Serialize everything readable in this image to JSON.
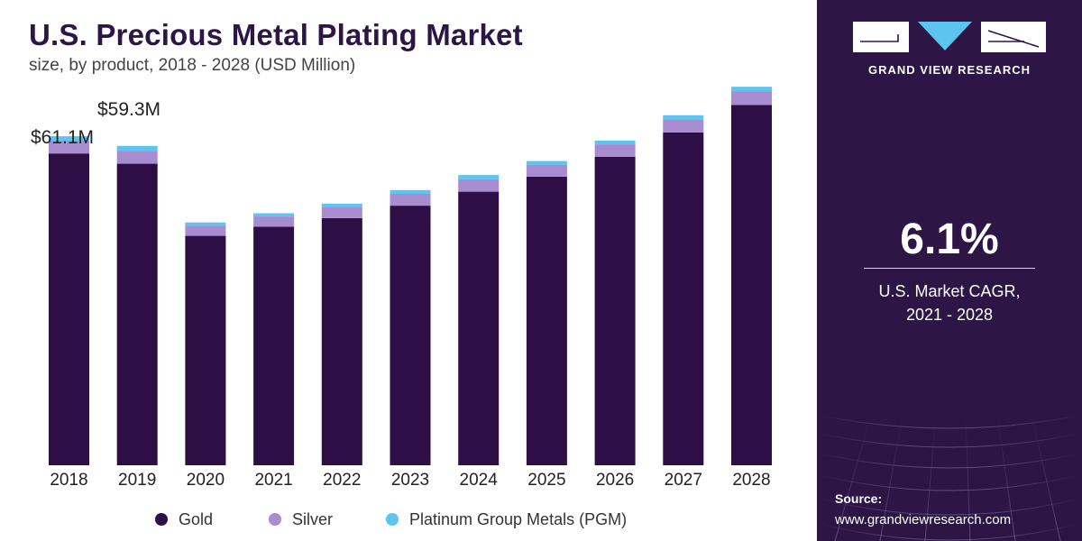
{
  "header": {
    "title": "U.S. Precious Metal Plating Market",
    "subtitle": "size, by product, 2018 - 2028 (USD Million)"
  },
  "callouts": {
    "value_2018": "$61.1M",
    "value_2019": "$59.3M"
  },
  "chart_data": {
    "type": "bar",
    "stacked": true,
    "categories": [
      "2018",
      "2019",
      "2020",
      "2021",
      "2022",
      "2023",
      "2024",
      "2025",
      "2026",
      "2027",
      "2028"
    ],
    "series": [
      {
        "name": "Gold",
        "color": "#2d0f45",
        "values": [
          57.9,
          56.0,
          42.6,
          44.3,
          45.9,
          48.2,
          50.8,
          53.6,
          57.3,
          61.8,
          66.9
        ]
      },
      {
        "name": "Silver",
        "color": "#a98bd0",
        "values": [
          2.3,
          2.4,
          1.9,
          1.9,
          2.0,
          2.2,
          2.3,
          2.2,
          2.3,
          2.4,
          2.5
        ]
      },
      {
        "name": "Platinum Group Metals (PGM)",
        "color": "#5bc4ef",
        "values": [
          0.9,
          0.9,
          0.6,
          0.6,
          0.7,
          0.7,
          0.8,
          0.7,
          0.7,
          0.8,
          0.9
        ]
      }
    ],
    "ylim": [
      0,
      72
    ],
    "grid": false,
    "legend_position": "bottom"
  },
  "sidebar": {
    "brand": "GRAND VIEW RESEARCH",
    "cagr_value": "6.1%",
    "cagr_label_line1": "U.S. Market CAGR,",
    "cagr_label_line2": "2021 - 2028",
    "source_label": "Source:",
    "source_url": "www.grandviewresearch.com"
  },
  "colors": {
    "panel": "#2d1546",
    "title": "#2d1546"
  }
}
